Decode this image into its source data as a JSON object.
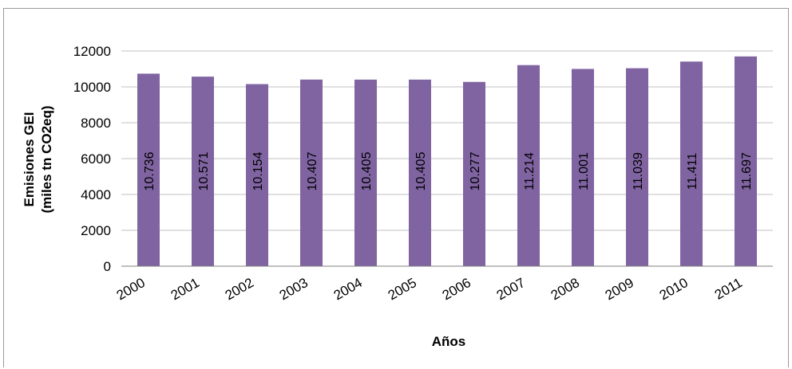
{
  "chart_data": {
    "type": "bar",
    "categories": [
      "2000",
      "2001",
      "2002",
      "2003",
      "2004",
      "2005",
      "2006",
      "2007",
      "2008",
      "2009",
      "2010",
      "2011"
    ],
    "values": [
      10736,
      10571,
      10154,
      10407,
      10405,
      10405,
      10277,
      11214,
      11001,
      11039,
      11411,
      11697
    ],
    "data_labels": [
      "10.736",
      "10.571",
      "10.154",
      "10.407",
      "10.405",
      "10.405",
      "10.277",
      "11.214",
      "11.001",
      "11.039",
      "11.411",
      "11.697"
    ],
    "title": "",
    "xlabel": "Años",
    "ylabel": "Emisiones GEI",
    "ylabel_line2": "(miles tn CO2eq)",
    "ylim": [
      0,
      12000
    ],
    "yticks": [
      "0",
      "2000",
      "4000",
      "6000",
      "8000",
      "10000",
      "12000"
    ],
    "grid": true,
    "legend": "none",
    "bar_color": "#8064a2",
    "grid_color": "#c0c0c0"
  }
}
